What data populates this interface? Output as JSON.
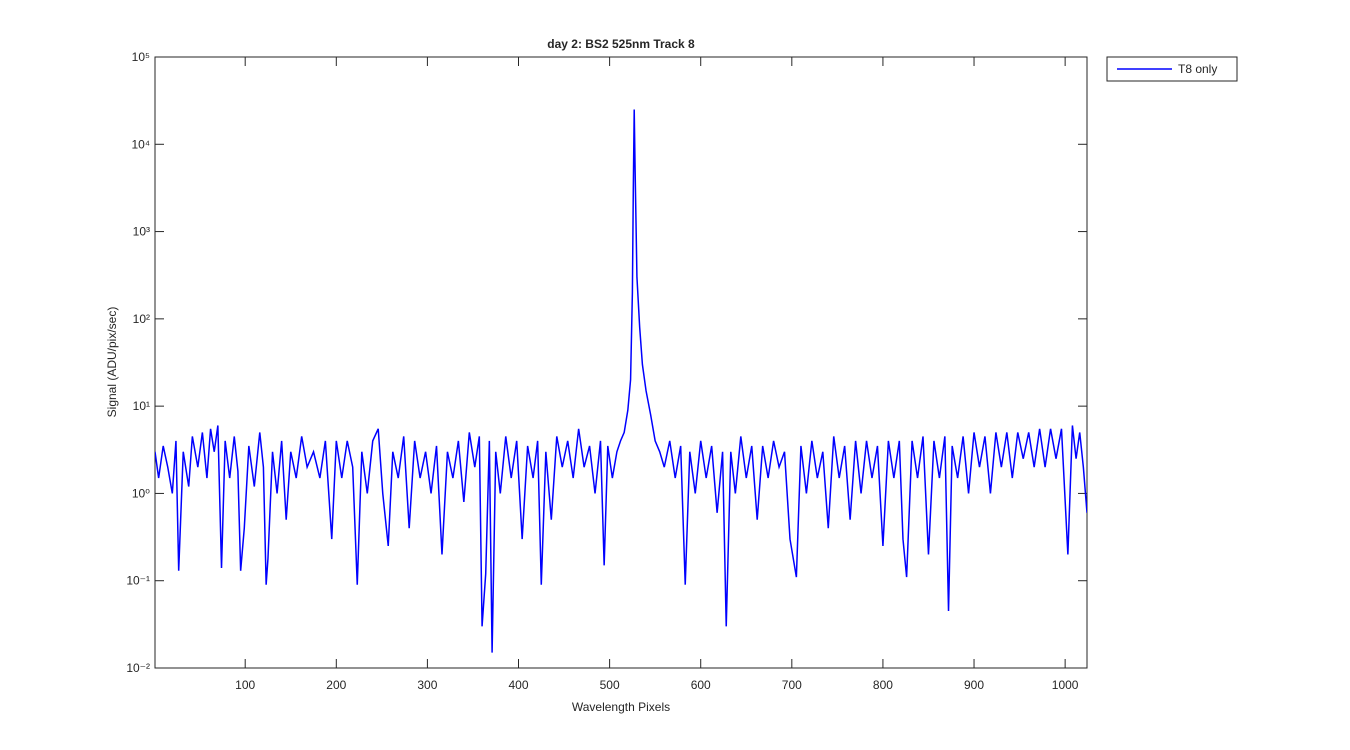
{
  "chart_data": {
    "type": "line",
    "title": "day 2: BS2  525nm  Track 8",
    "xlabel": "Wavelength Pixels",
    "ylabel": "Signal (ADU/pix/sec)",
    "log_y": true,
    "grid": false,
    "legend": "outside-northeast",
    "xlim": [
      1,
      1024
    ],
    "xticks": [
      100,
      200,
      300,
      400,
      500,
      600,
      700,
      800,
      900,
      1000
    ],
    "ylim": [
      0.01,
      100000
    ],
    "yticks": [
      {
        "value": 0.01,
        "label": "10⁻²"
      },
      {
        "value": 0.1,
        "label": "10⁻¹"
      },
      {
        "value": 1,
        "label": "10⁰"
      },
      {
        "value": 10,
        "label": "10¹"
      },
      {
        "value": 100,
        "label": "10²"
      },
      {
        "value": 1000,
        "label": "10³"
      },
      {
        "value": 10000,
        "label": "10⁴"
      },
      {
        "value": 100000,
        "label": "10⁵"
      }
    ],
    "x": [
      1,
      5,
      10,
      15,
      20,
      24,
      27,
      32,
      38,
      42,
      48,
      53,
      58,
      62,
      66,
      70,
      74,
      78,
      83,
      88,
      92,
      95,
      99,
      104,
      110,
      116,
      120,
      123,
      125,
      130,
      135,
      140,
      145,
      150,
      156,
      162,
      168,
      175,
      182,
      188,
      195,
      200,
      206,
      212,
      218,
      223,
      228,
      234,
      240,
      246,
      251,
      257,
      262,
      268,
      274,
      280,
      286,
      292,
      298,
      304,
      310,
      316,
      322,
      328,
      334,
      340,
      346,
      352,
      357,
      360,
      364,
      368,
      371,
      375,
      380,
      386,
      392,
      398,
      404,
      410,
      416,
      421,
      425,
      430,
      436,
      442,
      448,
      454,
      460,
      466,
      472,
      478,
      484,
      490,
      494,
      498,
      503,
      508,
      512,
      516,
      520,
      523,
      525,
      526,
      527,
      528,
      530,
      533,
      536,
      540,
      545,
      550,
      555,
      560,
      566,
      572,
      578,
      583,
      588,
      594,
      600,
      606,
      612,
      618,
      624,
      628,
      633,
      638,
      644,
      650,
      656,
      662,
      668,
      674,
      680,
      686,
      692,
      698,
      705,
      710,
      716,
      722,
      728,
      734,
      740,
      746,
      752,
      758,
      764,
      770,
      776,
      782,
      788,
      794,
      800,
      806,
      812,
      818,
      822,
      826,
      832,
      838,
      844,
      850,
      856,
      862,
      868,
      872,
      876,
      882,
      888,
      894,
      900,
      906,
      912,
      918,
      924,
      930,
      936,
      942,
      948,
      954,
      960,
      966,
      972,
      978,
      984,
      990,
      996,
      1003,
      1008,
      1012,
      1016,
      1020,
      1024
    ],
    "series": [
      {
        "name": "T8 only",
        "color": "#0000ff",
        "values": [
          3,
          1.5,
          3.5,
          2,
          1,
          4,
          0.13,
          3,
          1.2,
          4.5,
          2,
          5,
          1.5,
          5.5,
          3,
          6,
          0.14,
          4,
          1.5,
          4.5,
          1.8,
          0.13,
          0.4,
          3.5,
          1.2,
          5,
          2,
          0.09,
          0.18,
          3,
          1,
          4,
          0.5,
          3,
          1.5,
          4.5,
          2,
          3,
          1.5,
          4,
          0.3,
          4,
          1.5,
          4,
          2,
          0.09,
          3,
          1,
          4,
          5.5,
          1,
          0.25,
          3,
          1.5,
          4.5,
          0.4,
          4,
          1.5,
          3,
          1,
          3.5,
          0.2,
          3,
          1.5,
          4,
          0.8,
          5,
          2,
          4.5,
          0.03,
          0.12,
          4,
          0.015,
          3,
          1,
          4.5,
          1.5,
          4,
          0.3,
          3.5,
          1.5,
          4,
          0.09,
          3,
          0.5,
          4.5,
          2,
          4,
          1.5,
          5.5,
          2,
          3.5,
          1,
          4,
          0.15,
          3.5,
          1.5,
          3,
          4,
          5,
          9,
          20,
          200,
          3000,
          25000,
          5000,
          300,
          80,
          30,
          15,
          8,
          4,
          3,
          2,
          4,
          1.5,
          3.5,
          0.09,
          3,
          1,
          4,
          1.5,
          3.5,
          0.6,
          3,
          0.03,
          3,
          1,
          4.5,
          1.5,
          3.5,
          0.5,
          3.5,
          1.5,
          4,
          2,
          3,
          0.3,
          0.11,
          3.5,
          1,
          4,
          1.5,
          3,
          0.4,
          4.5,
          1.5,
          3.5,
          0.5,
          4,
          1,
          4,
          1.5,
          3.5,
          0.25,
          4,
          1.5,
          4,
          0.3,
          0.11,
          4,
          1.5,
          4.5,
          0.2,
          4,
          1.5,
          4.5,
          0.045,
          3.5,
          1.5,
          4.5,
          1,
          5,
          2,
          4.5,
          1,
          5,
          2,
          5,
          1.5,
          5,
          2.5,
          5,
          2,
          5.5,
          2,
          5.5,
          2.5,
          5.5,
          0.2,
          6,
          2.5,
          5,
          2,
          0.6
        ]
      }
    ]
  }
}
